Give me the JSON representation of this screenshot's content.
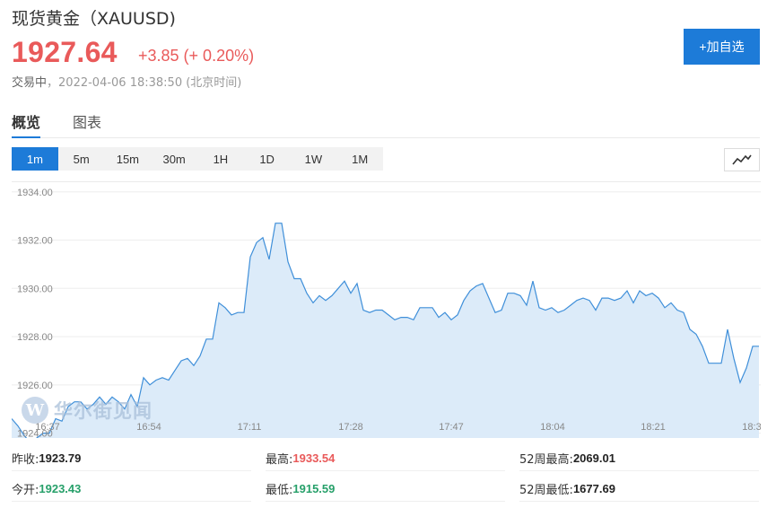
{
  "header": {
    "title": "现货黄金（XAUUSD)",
    "price": "1927.64",
    "change": "+3.85 (+ 0.20%)",
    "status_label": "交易中",
    "status_sep": "，",
    "timestamp": "2022-04-06 18:38:50 (北京时间)",
    "add_button": "+加自选"
  },
  "tabs": [
    {
      "label": "概览",
      "active": true
    },
    {
      "label": "图表",
      "active": false
    }
  ],
  "periods": [
    {
      "label": "1m",
      "active": true
    },
    {
      "label": "5m",
      "active": false
    },
    {
      "label": "15m",
      "active": false
    },
    {
      "label": "30m",
      "active": false
    },
    {
      "label": "1H",
      "active": false
    },
    {
      "label": "1D",
      "active": false
    },
    {
      "label": "1W",
      "active": false
    },
    {
      "label": "1M",
      "active": false
    }
  ],
  "chart_type_icon": "line-chart-icon",
  "watermark": {
    "logo": "W",
    "text": "华尔街见闻"
  },
  "colors": {
    "up": "#e95a5a",
    "down": "#27a06a",
    "accent": "#1d7bd8",
    "line": "#3f8fd9",
    "area": "#dcebf9"
  },
  "chart_data": {
    "type": "area",
    "x_ticks": [
      "16:37",
      "16:54",
      "17:11",
      "17:28",
      "17:47",
      "18:04",
      "18:21",
      "18:3"
    ],
    "y_ticks": [
      "1934.00",
      "1932.00",
      "1930.00",
      "1928.00",
      "1926.00",
      "1924.00"
    ],
    "ylim": [
      1923.8,
      1934.4
    ],
    "grid": true,
    "values": [
      1924.6,
      1924.3,
      1923.9,
      1923.6,
      1923.8,
      1924.0,
      1924.0,
      1924.6,
      1924.5,
      1925.1,
      1925.3,
      1925.3,
      1925.0,
      1925.2,
      1925.5,
      1925.2,
      1925.5,
      1925.3,
      1925.0,
      1925.6,
      1925.1,
      1926.3,
      1926.0,
      1926.2,
      1926.3,
      1926.2,
      1926.6,
      1927.0,
      1927.1,
      1926.8,
      1927.2,
      1927.9,
      1927.9,
      1929.4,
      1929.2,
      1928.9,
      1929.0,
      1929.0,
      1931.3,
      1931.9,
      1932.1,
      1931.2,
      1932.7,
      1932.7,
      1931.1,
      1930.4,
      1930.4,
      1929.8,
      1929.4,
      1929.7,
      1929.5,
      1929.7,
      1930.0,
      1930.3,
      1929.8,
      1930.2,
      1929.1,
      1929.0,
      1929.1,
      1929.1,
      1928.9,
      1928.7,
      1928.8,
      1928.8,
      1928.7,
      1929.2,
      1929.2,
      1929.2,
      1928.8,
      1929.0,
      1928.7,
      1928.9,
      1929.5,
      1929.9,
      1930.1,
      1930.2,
      1929.6,
      1929.0,
      1929.1,
      1929.8,
      1929.8,
      1929.7,
      1929.3,
      1930.3,
      1929.2,
      1929.1,
      1929.2,
      1929.0,
      1929.1,
      1929.3,
      1929.5,
      1929.6,
      1929.5,
      1929.1,
      1929.6,
      1929.6,
      1929.5,
      1929.6,
      1929.9,
      1929.4,
      1929.9,
      1929.7,
      1929.8,
      1929.6,
      1929.2,
      1929.4,
      1929.1,
      1929.0,
      1928.3,
      1928.1,
      1927.6,
      1926.9,
      1926.9,
      1926.9,
      1928.3,
      1927.1,
      1926.1,
      1926.7,
      1927.6,
      1927.6
    ]
  },
  "stats": [
    {
      "label": "昨收:",
      "value": "1923.79",
      "tone": "neutral",
      "col": 0,
      "row": 0
    },
    {
      "label": "最高:",
      "value": "1933.54",
      "tone": "up",
      "col": 1,
      "row": 0
    },
    {
      "label": "52周最高:",
      "value": "2069.01",
      "tone": "neutral",
      "col": 2,
      "row": 0
    },
    {
      "label": "今开:",
      "value": "1923.43",
      "tone": "down",
      "col": 0,
      "row": 1
    },
    {
      "label": "最低:",
      "value": "1915.59",
      "tone": "down",
      "col": 1,
      "row": 1
    },
    {
      "label": "52周最低:",
      "value": "1677.69",
      "tone": "neutral",
      "col": 2,
      "row": 1
    }
  ]
}
